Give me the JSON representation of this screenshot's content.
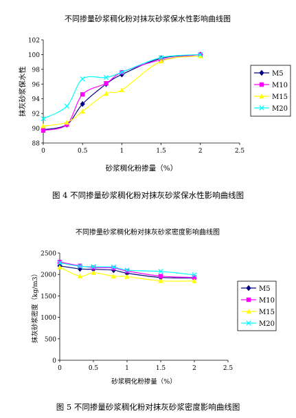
{
  "chart_data": [
    {
      "type": "line",
      "title": "不同掺量砂浆稠化粉对抹灰砂浆保水性影响曲线图",
      "xlabel": "砂浆稠化粉掺量（%）",
      "ylabel": "抹灰砂浆保水性",
      "xlim": [
        0,
        2.5
      ],
      "ylim": [
        88,
        102
      ],
      "xticks": [
        0,
        0.5,
        1,
        1.5,
        2,
        2.5
      ],
      "xtick_labels": [
        "0",
        "0.5",
        "1",
        "1.5",
        "2",
        "2.5"
      ],
      "yticks": [
        88,
        90,
        92,
        94,
        96,
        98,
        100,
        102
      ],
      "ytick_labels": [
        "88",
        "90",
        "92",
        "94",
        "96",
        "98",
        "100",
        "102"
      ],
      "grid": false,
      "legend_position": "right",
      "caption": "图 4   不同掺量砂浆稠化粉对抹灰砂浆保水性影响曲线图",
      "series": [
        {
          "name": "M5",
          "color": "#000080",
          "marker": "diamond",
          "x": [
            0,
            0.3,
            0.5,
            0.8,
            1,
            1.5,
            2
          ],
          "y": [
            89.8,
            90.5,
            93.3,
            96.0,
            97.3,
            99.5,
            100.0
          ]
        },
        {
          "name": "M10",
          "color": "#ff00ff",
          "marker": "square",
          "x": [
            0,
            0.3,
            0.5,
            0.8,
            1,
            1.5,
            2
          ],
          "y": [
            89.7,
            90.5,
            94.6,
            96.1,
            97.6,
            99.3,
            100.0
          ]
        },
        {
          "name": "M15",
          "color": "#ffff00",
          "marker": "triangle",
          "x": [
            0,
            0.3,
            0.5,
            0.8,
            1,
            1.5,
            2
          ],
          "y": [
            90.3,
            90.8,
            92.3,
            94.7,
            95.2,
            99.1,
            99.8
          ]
        },
        {
          "name": "M20",
          "color": "#00ffff",
          "marker": "x",
          "x": [
            0,
            0.3,
            0.5,
            0.8,
            1,
            1.5,
            2
          ],
          "y": [
            91.3,
            93.0,
            96.7,
            96.9,
            97.6,
            99.6,
            100.0
          ]
        }
      ]
    },
    {
      "type": "line",
      "title": "不同掺量砂浆稠化粉对抹灰砂浆密度影响曲线图",
      "xlabel": "砂浆稠化粉掺量（%）",
      "ylabel": "抹灰砂浆密度（kg/m3）",
      "xlim": [
        0,
        2.5
      ],
      "ylim": [
        0,
        2500
      ],
      "xticks": [
        0,
        0.5,
        1,
        1.5,
        2,
        2.5
      ],
      "xtick_labels": [
        "0",
        "0.5",
        "1",
        "1.5",
        "2",
        "2.5"
      ],
      "yticks": [
        0,
        500,
        1000,
        1500,
        2000,
        2500
      ],
      "ytick_labels": [
        "0",
        "500",
        "1000",
        "1500",
        "2000",
        "2500"
      ],
      "grid": false,
      "legend_position": "right",
      "caption": "图 5  不同掺量砂浆稠化粉对抹灰砂浆密度影响曲线图",
      "series": [
        {
          "name": "M5",
          "color": "#000080",
          "marker": "diamond",
          "x": [
            0,
            0.3,
            0.5,
            0.8,
            1,
            1.5,
            2
          ],
          "y": [
            2200,
            2130,
            2120,
            2100,
            2030,
            1930,
            1920
          ]
        },
        {
          "name": "M10",
          "color": "#ff00ff",
          "marker": "square",
          "x": [
            0,
            0.3,
            0.5,
            0.8,
            1,
            1.5,
            2
          ],
          "y": [
            2290,
            2200,
            2160,
            2150,
            2080,
            1960,
            1930
          ]
        },
        {
          "name": "M15",
          "color": "#ffff00",
          "marker": "triangle",
          "x": [
            0,
            0.3,
            0.5,
            0.8,
            1,
            1.5,
            2
          ],
          "y": [
            2170,
            1960,
            2040,
            1960,
            1950,
            1850,
            1850
          ]
        },
        {
          "name": "M20",
          "color": "#00ffff",
          "marker": "x",
          "x": [
            0,
            0.3,
            0.5,
            0.8,
            1,
            1.5,
            2
          ],
          "y": [
            2270,
            2190,
            2180,
            2170,
            2100,
            2070,
            1990
          ]
        }
      ]
    }
  ]
}
